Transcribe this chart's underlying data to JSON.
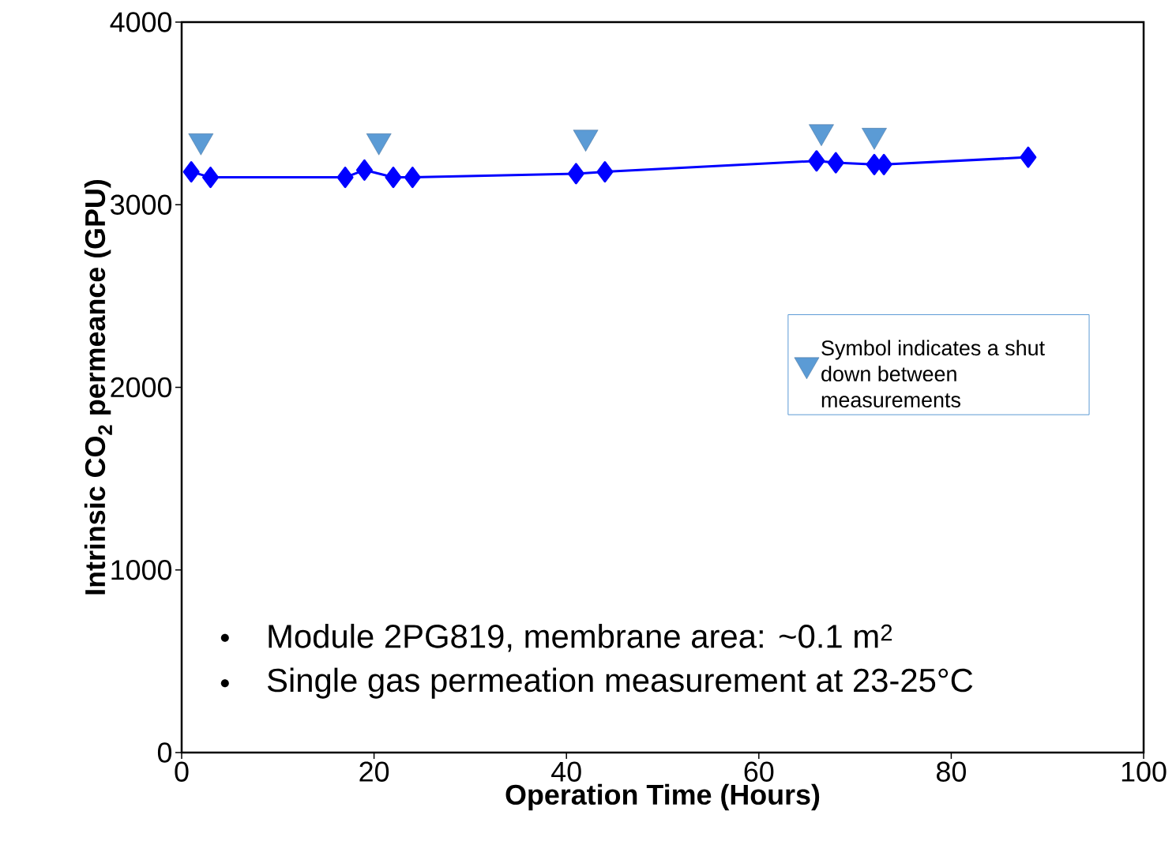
{
  "chart_data": {
    "type": "line",
    "xlabel": "Operation Time (Hours)",
    "ylabel": "Intrinsic CO$_{2}$ permeance (GPU)",
    "series": [
      {
        "color": "#0000ff",
        "marker": "diamond",
        "line_style": "solid",
        "x": [
          1,
          3,
          17,
          19,
          22,
          24,
          41,
          44,
          66,
          68,
          72,
          73,
          88
        ],
        "values": [
          3180,
          3150,
          3150,
          3190,
          3150,
          3150,
          3170,
          3180,
          3240,
          3230,
          3220,
          3220,
          3260
        ]
      },
      {
        "type": "scatter",
        "name": "Symbol indicates a shut down between measurements",
        "color": "#5b9bd5",
        "marker": "triangle",
        "x": [
          2,
          20.5,
          42,
          66.5,
          72
        ],
        "values": [
          3350,
          3350,
          3370,
          3400,
          3380
        ]
      }
    ],
    "xlim": [
      0,
      100
    ],
    "ylim": [
      0,
      4000
    ],
    "xticks": [
      0,
      20,
      40,
      60,
      80,
      100
    ],
    "yticks": [
      0,
      1000,
      2000,
      3000,
      4000
    ],
    "grid": false,
    "legend": "right",
    "annotations": [
      "Module 2PG819, membrane area: ~0.1 m$^{2}$",
      "Single gas permeation measurement at 23-25°C"
    ]
  }
}
